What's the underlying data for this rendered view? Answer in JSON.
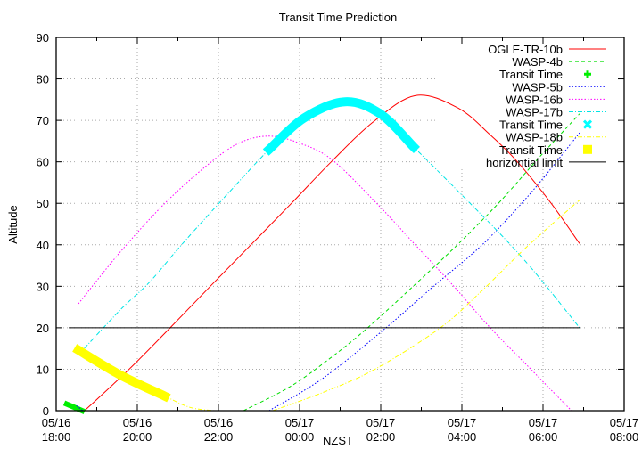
{
  "chart_data": {
    "type": "line",
    "title": "Transit Time Prediction",
    "xlabel": "NZST",
    "ylabel": "Altitude",
    "x_unit": "hours since 05/16 18:00",
    "xlim": [
      0,
      14
    ],
    "ylim": [
      0,
      90
    ],
    "grid": true,
    "legend_placement": "top-right",
    "x_ticks": [
      {
        "value": 0,
        "line1": "05/16",
        "line2": "18:00"
      },
      {
        "value": 2,
        "line1": "05/16",
        "line2": "20:00"
      },
      {
        "value": 4,
        "line1": "05/16",
        "line2": "22:00"
      },
      {
        "value": 6,
        "line1": "05/17",
        "line2": "00:00"
      },
      {
        "value": 8,
        "line1": "05/17",
        "line2": "02:00"
      },
      {
        "value": 10,
        "line1": "05/17",
        "line2": "04:00"
      },
      {
        "value": 12,
        "line1": "05/17",
        "line2": "06:00"
      },
      {
        "value": 14,
        "line1": "05/17",
        "line2": "08:00"
      }
    ],
    "y_ticks": [
      0,
      10,
      20,
      30,
      40,
      50,
      60,
      70,
      80,
      90
    ],
    "series": [
      {
        "name": "OGLE-TR-10b",
        "color": "#ff0000",
        "style": "solid",
        "width": 1,
        "segments": [
          [
            [
              0.7,
              0
            ],
            [
              1.8,
              10
            ],
            [
              2.81,
              20
            ],
            [
              3.8,
              30
            ],
            [
              4.8,
              40
            ],
            [
              5.8,
              50
            ],
            [
              6.78,
              60
            ],
            [
              7.8,
              69.5
            ],
            [
              8.86,
              76
            ],
            [
              9.9,
              73
            ],
            [
              10.7,
              66.5
            ],
            [
              11.37,
              60
            ],
            [
              12.2,
              50
            ],
            [
              12.9,
              40.3
            ]
          ]
        ]
      },
      {
        "name": "WASP-4b",
        "color": "#00dd00",
        "style": "dash",
        "width": 1,
        "segments": [
          [
            [
              4.62,
              0
            ],
            [
              5.8,
              6
            ],
            [
              6.8,
              13
            ],
            [
              7.68,
              20
            ],
            [
              8.8,
              30
            ],
            [
              9.89,
              40
            ],
            [
              10.9,
              50
            ],
            [
              11.9,
              61
            ],
            [
              12.9,
              71.6
            ]
          ]
        ]
      },
      {
        "name": "Transit Time",
        "color": "#00ee00",
        "style": "thick",
        "width": 6,
        "marker": "plus",
        "segments": [
          [
            [
              0.26,
              1.6
            ],
            [
              0.64,
              0
            ]
          ]
        ]
      },
      {
        "name": "WASP-5b",
        "color": "#0000ff",
        "style": "dot",
        "width": 1,
        "segments": [
          [
            [
              0.5,
              1.2
            ],
            [
              0.66,
              0
            ]
          ],
          [
            [
              5.25,
              0
            ],
            [
              6.6,
              8
            ],
            [
              8.13,
              20
            ],
            [
              9.3,
              30
            ],
            [
              10.5,
              40
            ],
            [
              11.7,
              52.5
            ],
            [
              12.9,
              67
            ]
          ]
        ]
      },
      {
        "name": "WASP-16b",
        "color": "#ff00ff",
        "style": "dot",
        "width": 1,
        "segments": [
          [
            [
              0.55,
              25.8
            ],
            [
              1.6,
              38.5
            ],
            [
              2.68,
              50
            ],
            [
              3.7,
              59
            ],
            [
              4.5,
              64.5
            ],
            [
              5.25,
              66.2
            ],
            [
              6.0,
              64.5
            ],
            [
              6.8,
              60.5
            ],
            [
              7.9,
              50
            ],
            [
              8.85,
              40
            ],
            [
              9.8,
              30
            ],
            [
              10.7,
              20
            ],
            [
              11.7,
              10
            ],
            [
              12.7,
              0
            ]
          ]
        ]
      },
      {
        "name": "WASP-17b",
        "color": "#00e5e5",
        "style": "dashdot",
        "width": 1,
        "segments": [
          [
            [
              0.55,
              13.5
            ],
            [
              1.6,
              24.5
            ],
            [
              2.3,
              31
            ],
            [
              3.09,
              40
            ],
            [
              4.2,
              52
            ],
            [
              5.25,
              63
            ],
            [
              6.1,
              70.5
            ],
            [
              7.12,
              74.5
            ],
            [
              8.0,
              71.5
            ],
            [
              8.81,
              63.6
            ],
            [
              10.0,
              52
            ],
            [
              11.2,
              40
            ],
            [
              12.0,
              31
            ],
            [
              12.9,
              20
            ]
          ]
        ]
      },
      {
        "name": "Transit Time",
        "color": "#00ffff",
        "style": "thick",
        "width": 10,
        "marker": "cross",
        "segments": [
          [
            [
              5.25,
              63
            ],
            [
              6.1,
              70.5
            ],
            [
              7.12,
              74.5
            ],
            [
              8.0,
              71.5
            ],
            [
              8.81,
              63.6
            ]
          ]
        ]
      },
      {
        "name": "WASP-18b",
        "color": "#ffff00",
        "style": "dashdot",
        "width": 1,
        "segments": [
          [
            [
              0.55,
              14.6
            ],
            [
              1.6,
              8.5
            ],
            [
              2.68,
              3.5
            ],
            [
              3.3,
              0.8
            ],
            [
              3.89,
              0
            ]
          ],
          [
            [
              5.34,
              0
            ],
            [
              6.6,
              4.5
            ],
            [
              7.86,
              10
            ],
            [
              9.47,
              20
            ],
            [
              10.5,
              29
            ],
            [
              11.6,
              39.5
            ],
            [
              12.9,
              50.8
            ]
          ]
        ]
      },
      {
        "name": "Transit Time",
        "color": "#ffff00",
        "style": "thick",
        "width": 10,
        "marker": "square",
        "segments": [
          [
            [
              0.55,
              14.6
            ],
            [
              1.6,
              8.5
            ],
            [
              2.68,
              3.5
            ]
          ]
        ]
      },
      {
        "name": "horizontial limit",
        "color": "#000000",
        "style": "solid",
        "width": 1,
        "segments": [
          [
            [
              0.31,
              20
            ],
            [
              12.9,
              20
            ]
          ]
        ]
      }
    ]
  }
}
